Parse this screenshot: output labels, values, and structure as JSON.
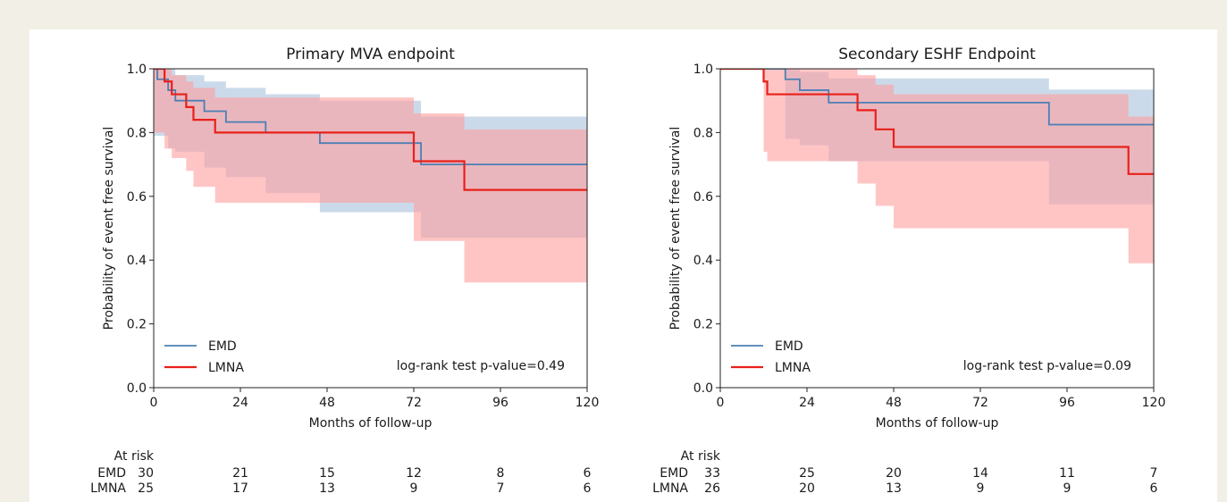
{
  "chart_data": [
    {
      "type": "line",
      "title": "Primary MVA endpoint",
      "xlabel": "Months of follow-up",
      "ylabel": "Probability of event free survival",
      "xlim": [
        0,
        120
      ],
      "ylim": [
        0,
        1.0
      ],
      "x_ticks": [
        "0",
        "24",
        "48",
        "72",
        "96",
        "120"
      ],
      "y_ticks": [
        "0.0",
        "0.2",
        "0.4",
        "0.6",
        "0.8",
        "1.0"
      ],
      "annotation": "log-rank test p-value=0.49",
      "legend_position": "bottom-left",
      "grid": false,
      "series": [
        {
          "name": "EMD",
          "color": "#4a7fb5",
          "band_color": "#a9c2dc",
          "x": [
            0,
            1,
            4,
            6,
            14,
            20,
            31,
            46,
            74,
            120
          ],
          "y": [
            1.0,
            0.967,
            0.933,
            0.9,
            0.867,
            0.833,
            0.8,
            0.767,
            0.7,
            0.7
          ],
          "ci_lower": [
            0.79,
            0.79,
            0.75,
            0.74,
            0.69,
            0.66,
            0.61,
            0.55,
            0.47,
            0.47
          ],
          "ci_upper": [
            1.0,
            1.0,
            1.0,
            0.98,
            0.96,
            0.94,
            0.92,
            0.9,
            0.85,
            0.85
          ]
        },
        {
          "name": "LMNA",
          "color": "#e8201a",
          "band_color": "#ff9e9e",
          "x": [
            0,
            3,
            5,
            6,
            9,
            11,
            17,
            72,
            86,
            120
          ],
          "y": [
            1.0,
            0.96,
            0.92,
            0.92,
            0.88,
            0.84,
            0.8,
            0.71,
            0.62,
            0.62
          ],
          "ci_lower": [
            0.8,
            0.75,
            0.72,
            0.72,
            0.68,
            0.63,
            0.58,
            0.46,
            0.33,
            0.33
          ],
          "ci_upper": [
            1.0,
            1.0,
            0.98,
            0.98,
            0.96,
            0.94,
            0.91,
            0.86,
            0.81,
            0.81
          ]
        }
      ],
      "at_risk": {
        "label": "At risk",
        "x": [
          0,
          24,
          48,
          72,
          96,
          120
        ],
        "rows": [
          {
            "name": "EMD",
            "values": [
              "30",
              "21",
              "15",
              "12",
              "8",
              "6"
            ]
          },
          {
            "name": "LMNA",
            "values": [
              "25",
              "17",
              "13",
              "9",
              "7",
              "6"
            ]
          }
        ]
      }
    },
    {
      "type": "line",
      "title": "Secondary ESHF Endpoint",
      "xlabel": "Months of follow-up",
      "ylabel": "Probability of event free survival",
      "xlim": [
        0,
        120
      ],
      "ylim": [
        0,
        1.0
      ],
      "x_ticks": [
        "0",
        "24",
        "48",
        "72",
        "96",
        "120"
      ],
      "y_ticks": [
        "0.0",
        "0.2",
        "0.4",
        "0.6",
        "0.8",
        "1.0"
      ],
      "annotation": "log-rank test p-value=0.09",
      "legend_position": "bottom-left",
      "grid": false,
      "series": [
        {
          "name": "EMD",
          "color": "#4a7fb5",
          "band_color": "#a9c2dc",
          "x": [
            0,
            18,
            22,
            30,
            91,
            120
          ],
          "y": [
            1.0,
            0.967,
            0.933,
            0.894,
            0.825,
            0.825
          ],
          "ci_lower": [
            1.0,
            0.78,
            0.76,
            0.71,
            0.575,
            0.575
          ],
          "ci_upper": [
            1.0,
            1.0,
            0.99,
            0.97,
            0.935,
            0.935
          ]
        },
        {
          "name": "LMNA",
          "color": "#e8201a",
          "band_color": "#ff9e9e",
          "x": [
            0,
            12,
            13,
            38,
            43,
            48,
            113,
            120
          ],
          "y": [
            1.0,
            0.96,
            0.92,
            0.87,
            0.81,
            0.755,
            0.67,
            0.67
          ],
          "ci_lower": [
            1.0,
            0.74,
            0.71,
            0.64,
            0.57,
            0.5,
            0.39,
            0.39
          ],
          "ci_upper": [
            1.0,
            1.0,
            1.0,
            0.98,
            0.95,
            0.92,
            0.85,
            0.85
          ]
        }
      ],
      "at_risk": {
        "label": "At risk",
        "x": [
          0,
          24,
          48,
          72,
          96,
          120
        ],
        "rows": [
          {
            "name": "EMD",
            "values": [
              "33",
              "25",
              "20",
              "14",
              "11",
              "7"
            ]
          },
          {
            "name": "LMNA",
            "values": [
              "26",
              "20",
              "13",
              "9",
              "9",
              "6"
            ]
          }
        ]
      }
    }
  ]
}
